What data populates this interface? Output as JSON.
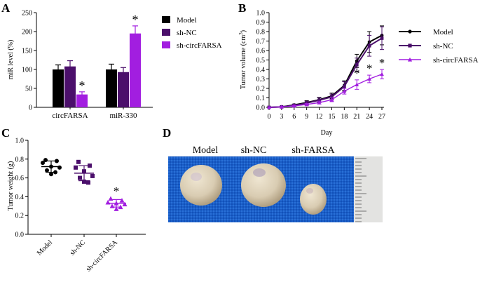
{
  "panels": {
    "a": {
      "letter": "A"
    },
    "b": {
      "letter": "B"
    },
    "c": {
      "letter": "C"
    },
    "d": {
      "letter": "D",
      "labels": [
        "Model",
        "sh-NC",
        "sh-FARSA"
      ]
    }
  },
  "colors": {
    "model": "#000000",
    "sh_nc": "#4b0f6b",
    "sh_circ": "#a21ee0",
    "significance": "#000000"
  },
  "chart_data": [
    {
      "type": "bar",
      "title": "",
      "ylabel": "miR level (%)",
      "ylim": [
        0,
        250
      ],
      "yticks": [
        "0",
        "50",
        "100",
        "150",
        "200",
        "250"
      ],
      "categories": [
        "circFARSA",
        "miR-330"
      ],
      "series": [
        {
          "name": "Model",
          "values": [
            100,
            100
          ],
          "errors": [
            12,
            14
          ]
        },
        {
          "name": "sh-NC",
          "values": [
            108,
            93
          ],
          "errors": [
            15,
            12
          ]
        },
        {
          "name": "sh-circFARSA",
          "values": [
            34,
            195
          ],
          "errors": [
            7,
            20
          ]
        }
      ],
      "significance": [
        {
          "series": 2,
          "category": 0,
          "mark": "*"
        },
        {
          "series": 2,
          "category": 1,
          "mark": "*"
        }
      ],
      "legend": "right"
    },
    {
      "type": "line",
      "title": "",
      "ylabel_main": "Tumor volume (cm",
      "ylabel_super": "3",
      "ylabel_close": ")",
      "xlabel": "Day",
      "x": [
        0,
        3,
        6,
        9,
        12,
        15,
        18,
        21,
        24,
        27
      ],
      "xticks": [
        "0",
        "3",
        "6",
        "9",
        "12",
        "15",
        "18",
        "21",
        "24",
        "27"
      ],
      "ylim": [
        0,
        1.0
      ],
      "yticks": [
        "0.0",
        "0.1",
        "0.2",
        "0.3",
        "0.4",
        "0.5",
        "0.6",
        "0.7",
        "0.8",
        "0.9",
        "1.0"
      ],
      "series": [
        {
          "name": "Model",
          "marker": "circle",
          "values": [
            0,
            0.005,
            0.025,
            0.05,
            0.08,
            0.12,
            0.23,
            0.49,
            0.69,
            0.76
          ],
          "errors": [
            0,
            0.005,
            0.01,
            0.02,
            0.025,
            0.03,
            0.05,
            0.07,
            0.11,
            0.1
          ]
        },
        {
          "name": "sh-NC",
          "marker": "square",
          "values": [
            0,
            0.005,
            0.02,
            0.045,
            0.075,
            0.11,
            0.22,
            0.45,
            0.65,
            0.73
          ],
          "errors": [
            0,
            0.005,
            0.01,
            0.02,
            0.025,
            0.03,
            0.05,
            0.07,
            0.11,
            0.12
          ]
        },
        {
          "name": "sh-circFARSA",
          "marker": "triangle",
          "values": [
            0,
            0.005,
            0.015,
            0.03,
            0.05,
            0.08,
            0.17,
            0.24,
            0.3,
            0.35
          ],
          "errors": [
            0,
            0.003,
            0.008,
            0.01,
            0.015,
            0.02,
            0.03,
            0.05,
            0.04,
            0.05
          ]
        }
      ],
      "significance": [
        {
          "series": 2,
          "x_index": 7,
          "mark": "*"
        },
        {
          "series": 2,
          "x_index": 8,
          "mark": "*"
        },
        {
          "series": 2,
          "x_index": 9,
          "mark": "*"
        }
      ],
      "legend": "right"
    },
    {
      "type": "scatter",
      "title": "",
      "ylabel": "Tumor weight (g)",
      "ylim": [
        0,
        1.0
      ],
      "yticks": [
        "0.0",
        "0.2",
        "0.4",
        "0.6",
        "0.8",
        "1.0"
      ],
      "categories": [
        "Model",
        "sh-NC",
        "sh-circFARSA"
      ],
      "groups": [
        {
          "name": "Model",
          "marker": "circle",
          "mean": 0.72,
          "sd": 0.06,
          "points": [
            0.79,
            0.78,
            0.76,
            0.72,
            0.71,
            0.68,
            0.66,
            0.64
          ]
        },
        {
          "name": "sh-NC",
          "marker": "square",
          "mean": 0.65,
          "sd": 0.08,
          "points": [
            0.77,
            0.73,
            0.71,
            0.67,
            0.62,
            0.6,
            0.55,
            0.56
          ]
        },
        {
          "name": "sh-circFARSA",
          "marker": "triangle",
          "mean": 0.33,
          "sd": 0.04,
          "points": [
            0.38,
            0.36,
            0.34,
            0.33,
            0.32,
            0.3,
            0.29,
            0.27
          ]
        }
      ],
      "significance": [
        {
          "group": 2,
          "mark": "*"
        }
      ]
    }
  ]
}
